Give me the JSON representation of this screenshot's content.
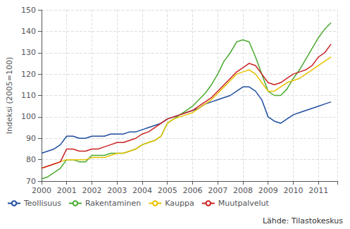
{
  "chart_data": {
    "type": "line",
    "ylabel": "Indeksi (2005=100)",
    "annotation": "Lähde: Tilastokeskus",
    "x": [
      2000.0,
      2000.25,
      2000.5,
      2000.75,
      2001.0,
      2001.25,
      2001.5,
      2001.75,
      2002.0,
      2002.25,
      2002.5,
      2002.75,
      2003.0,
      2003.25,
      2003.5,
      2003.75,
      2004.0,
      2004.25,
      2004.5,
      2004.75,
      2005.0,
      2005.25,
      2005.5,
      2005.75,
      2006.0,
      2006.25,
      2006.5,
      2006.75,
      2007.0,
      2007.25,
      2007.5,
      2007.75,
      2008.0,
      2008.25,
      2008.5,
      2008.75,
      2009.0,
      2009.25,
      2009.5,
      2009.75,
      2010.0,
      2010.25,
      2010.5,
      2010.75,
      2011.0,
      2011.25,
      2011.5
    ],
    "series": [
      {
        "name": "Teollisuus",
        "color": "#1f4e9e",
        "values": [
          83,
          84,
          85,
          87,
          91,
          91,
          90,
          90,
          91,
          91,
          91,
          92,
          92,
          92,
          93,
          93,
          94,
          95,
          96,
          97,
          99,
          100,
          101,
          102,
          103,
          104,
          106,
          107,
          108,
          109,
          110,
          112,
          114,
          114,
          112,
          108,
          100,
          98,
          97,
          99,
          101,
          102,
          103,
          104,
          105,
          106,
          107
        ]
      },
      {
        "name": "Rakentaminen",
        "color": "#4aaa30",
        "values": [
          71,
          72,
          74,
          76,
          80,
          80,
          79,
          79,
          82,
          82,
          82,
          83,
          83,
          83,
          84,
          85,
          87,
          88,
          89,
          91,
          97,
          99,
          101,
          103,
          105,
          108,
          111,
          115,
          120,
          126,
          130,
          135,
          136,
          135,
          128,
          120,
          112,
          110,
          110,
          113,
          118,
          122,
          127,
          132,
          137,
          141,
          144
        ]
      },
      {
        "name": "Kauppa",
        "color": "#e8c000",
        "values": [
          76,
          77,
          78,
          79,
          80,
          80,
          80,
          80,
          81,
          81,
          81,
          82,
          83,
          83,
          84,
          85,
          87,
          88,
          89,
          91,
          97,
          99,
          100,
          101,
          102,
          104,
          106,
          108,
          111,
          114,
          117,
          120,
          121,
          122,
          120,
          116,
          112,
          112,
          114,
          116,
          117,
          118,
          120,
          122,
          124,
          126,
          128
        ]
      },
      {
        "name": "Muutpalvelut",
        "color": "#cc2222",
        "values": [
          76,
          77,
          78,
          79,
          85,
          85,
          84,
          84,
          85,
          85,
          86,
          87,
          88,
          88,
          89,
          90,
          92,
          93,
          95,
          97,
          99,
          100,
          101,
          102,
          103,
          105,
          107,
          109,
          112,
          115,
          118,
          121,
          123,
          125,
          124,
          120,
          116,
          115,
          116,
          118,
          120,
          121,
          122,
          124,
          128,
          130,
          134
        ]
      }
    ],
    "xlim": [
      2000,
      2011.75
    ],
    "xticks": [
      2000,
      2001,
      2002,
      2003,
      2004,
      2005,
      2006,
      2007,
      2008,
      2009,
      2010,
      2011
    ],
    "ylim": [
      70,
      150
    ],
    "yticks": [
      70,
      80,
      90,
      100,
      110,
      120,
      130,
      140,
      150
    ],
    "grid": true,
    "legend": "bottom"
  }
}
